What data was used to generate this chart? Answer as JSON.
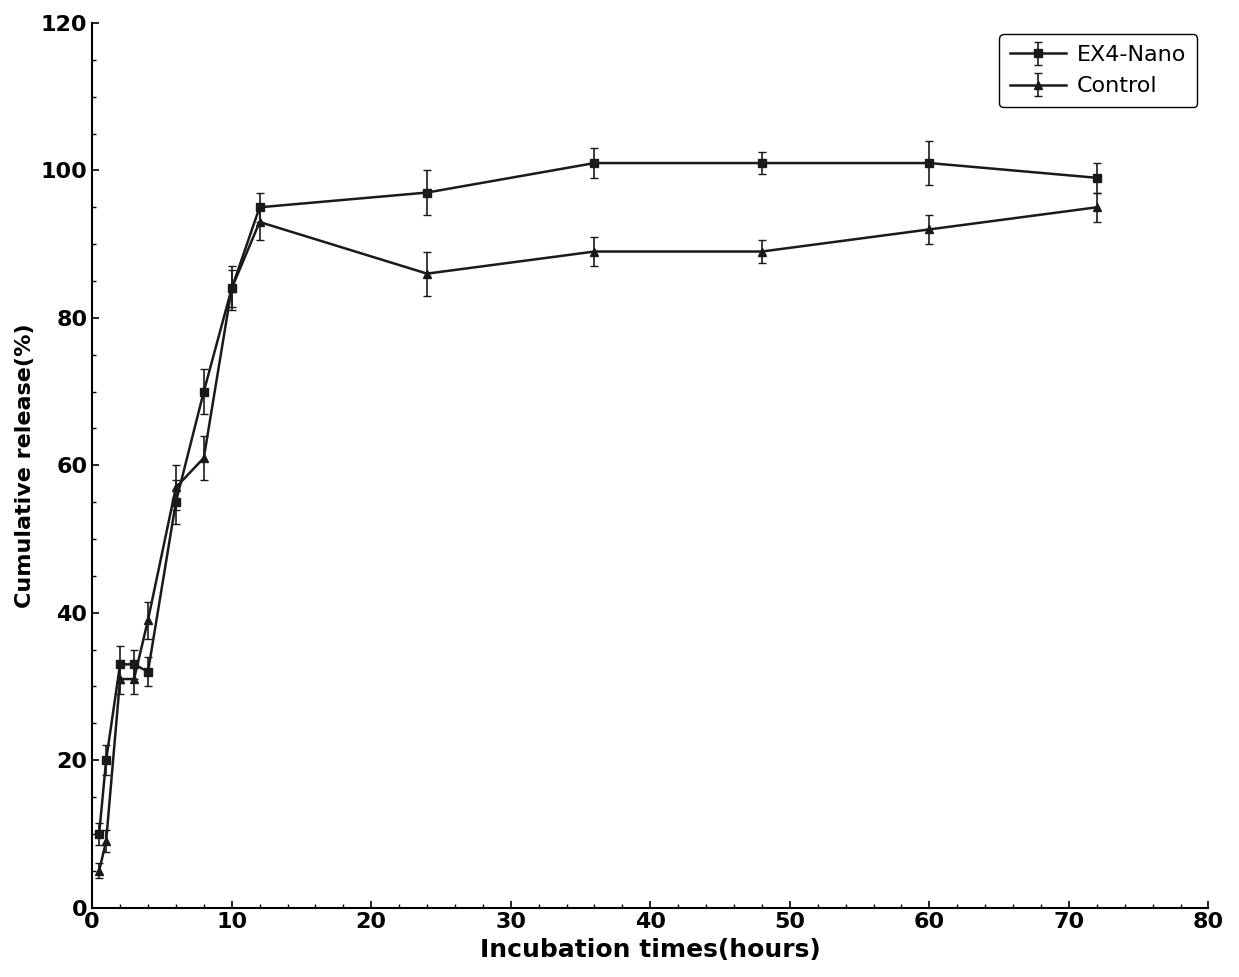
{
  "ex4_nano_x": [
    0.5,
    1,
    2,
    3,
    4,
    6,
    8,
    10,
    12,
    24,
    36,
    48,
    60,
    72
  ],
  "ex4_nano_y": [
    10,
    20,
    33,
    33,
    32,
    55,
    70,
    84,
    95,
    97,
    101,
    101,
    101,
    99
  ],
  "ex4_nano_yerr": [
    1.5,
    2,
    2.5,
    2,
    2,
    3,
    3,
    3,
    2,
    3,
    2,
    1.5,
    3,
    2
  ],
  "control_x": [
    0.5,
    1,
    2,
    3,
    4,
    6,
    8,
    10,
    12,
    24,
    36,
    48,
    60,
    72
  ],
  "control_y": [
    5,
    9,
    31,
    31,
    39,
    57,
    61,
    84,
    93,
    86,
    89,
    89,
    92,
    95
  ],
  "control_yerr": [
    1,
    1.5,
    2,
    2,
    2.5,
    3,
    3,
    2.5,
    2.5,
    3,
    2,
    1.5,
    2,
    2
  ],
  "xlabel": "Incubation times(hours)",
  "ylabel": "Cumulative release(%)",
  "xlim": [
    0,
    80
  ],
  "ylim": [
    0,
    120
  ],
  "xticks": [
    0,
    10,
    20,
    30,
    40,
    50,
    60,
    70,
    80
  ],
  "yticks": [
    0,
    20,
    40,
    60,
    80,
    100,
    120
  ],
  "legend_labels": [
    "EX4-Nano",
    "Control"
  ],
  "line_color": "#1a1a1a",
  "marker_ex4": "-s",
  "marker_control": "-^",
  "markersize": 6,
  "linewidth": 1.8,
  "capsize": 3,
  "elinewidth": 1.2,
  "xlabel_fontsize": 18,
  "ylabel_fontsize": 16,
  "tick_fontsize": 16,
  "legend_fontsize": 16
}
